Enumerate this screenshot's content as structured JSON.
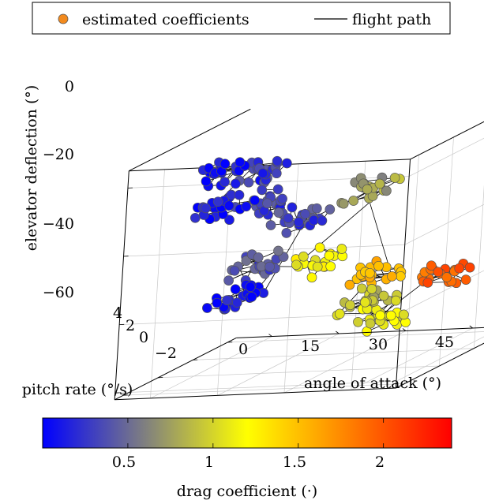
{
  "chart_data": [
    {
      "type": "scatter",
      "subtype": "3d-scatter-with-path",
      "legend": {
        "placement": "top",
        "entries": [
          {
            "label": "estimated coefficients",
            "marker": "circle",
            "color": "#F28A1E"
          },
          {
            "label": "flight path",
            "marker": "line",
            "color": "#000000"
          }
        ]
      },
      "xlabel": "angle of attack (°)",
      "ylabel": "pitch rate (°/s)",
      "zlabel": "elevator deflection (°)",
      "xticks": [
        "0",
        "15",
        "30",
        "45"
      ],
      "yticks": [
        "−2",
        "0",
        "2",
        "4"
      ],
      "zticks": [
        "−60",
        "−40",
        "−20",
        "0"
      ],
      "xlim": [
        -8,
        55
      ],
      "ylim": [
        -2.5,
        4.5
      ],
      "zlim": [
        -62,
        5
      ],
      "grid": true,
      "colorbar": {
        "label": "drag coefficient (·)",
        "ticks": [
          "0.5",
          "1",
          "1.5",
          "2"
        ],
        "range": [
          0,
          2.4
        ],
        "colors": [
          "#0000FF",
          "#FFFF00",
          "#FF0000"
        ]
      },
      "clusters": [
        {
          "alpha": 0,
          "q": 1.0,
          "elev": -5,
          "cd": 0.05
        },
        {
          "alpha": 10,
          "q": 1.0,
          "elev": -5,
          "cd": 0.2
        },
        {
          "alpha": 0,
          "q": 1.0,
          "elev": -15,
          "cd": 0.05
        },
        {
          "alpha": 10,
          "q": 1.0,
          "elev": -15,
          "cd": 0.25
        },
        {
          "alpha": 18,
          "q": 1.0,
          "elev": -19,
          "cd": 0.25
        },
        {
          "alpha": 4,
          "q": 1.0,
          "elev": -43,
          "cd": 0.05
        },
        {
          "alpha": 8,
          "q": 1.0,
          "elev": -33,
          "cd": 0.3
        },
        {
          "alpha": 22,
          "q": 1.0,
          "elev": -33,
          "cd": 1.0
        },
        {
          "alpha": 34,
          "q": 1.0,
          "elev": -11,
          "cd": 0.65
        },
        {
          "alpha": 36,
          "q": 1.0,
          "elev": -36,
          "cd": 1.5
        },
        {
          "alpha": 34,
          "q": 1.0,
          "elev": -45,
          "cd": 0.75
        },
        {
          "alpha": 38,
          "q": 1.0,
          "elev": -49,
          "cd": 0.9
        },
        {
          "alpha": 50,
          "q": 1.0,
          "elev": -38,
          "cd": 2.0
        }
      ]
    }
  ]
}
